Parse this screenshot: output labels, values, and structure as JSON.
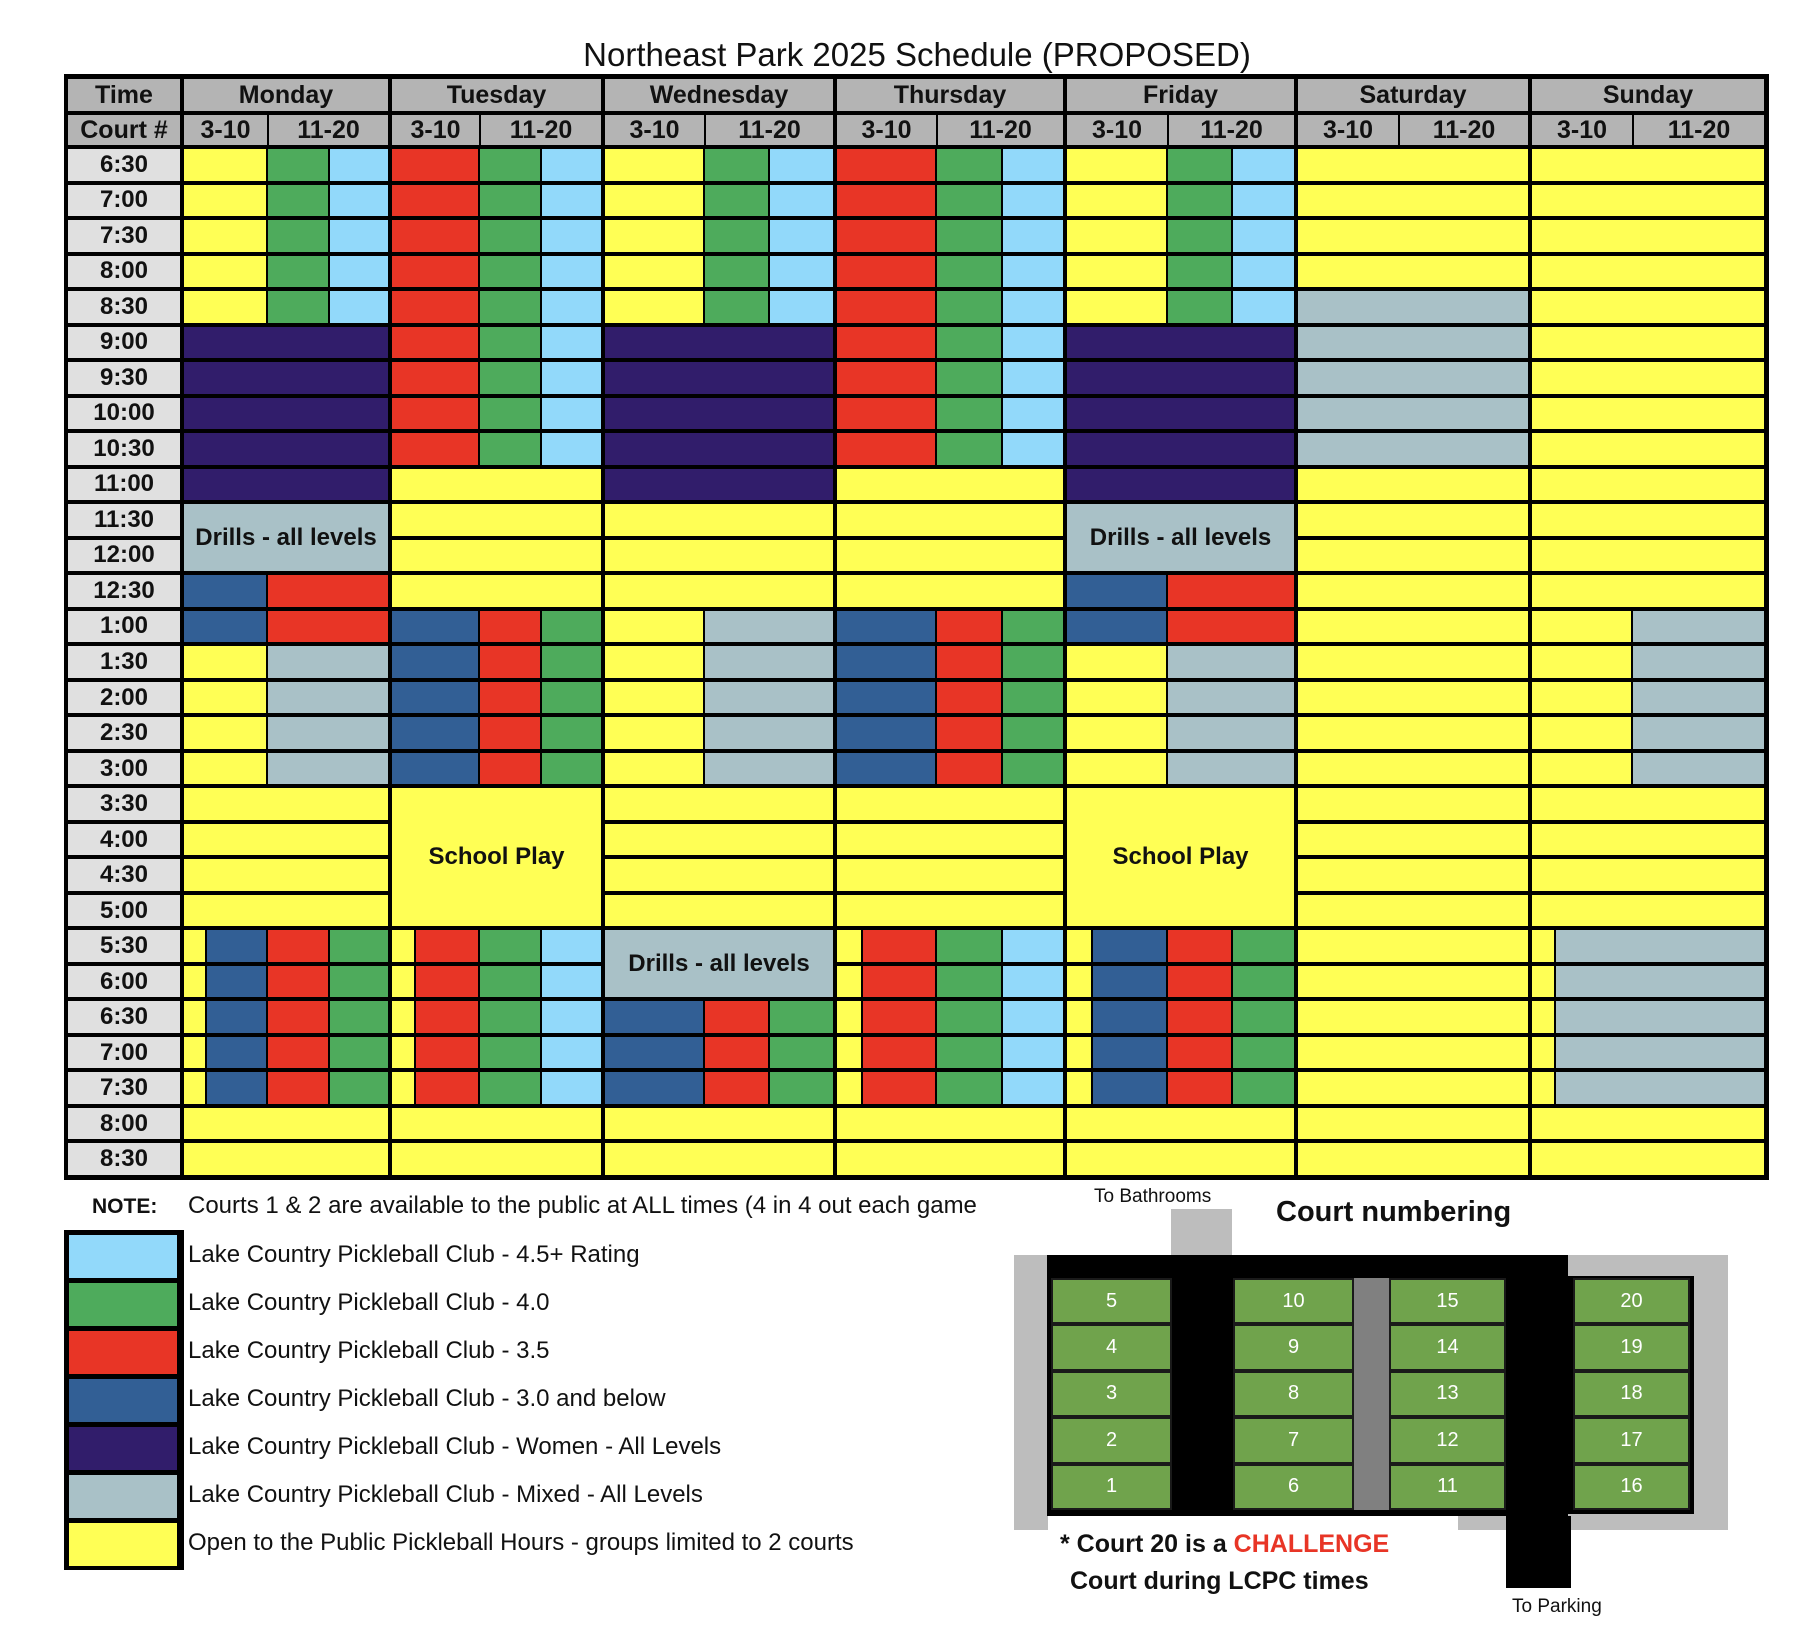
{
  "title": "Northeast Park 2025 Schedule (PROPOSED)",
  "header": {
    "time_label": "Time",
    "court_label": "Court #",
    "sub_labels": [
      "3-10",
      "11-20"
    ],
    "days": [
      "Monday",
      "Tuesday",
      "Wednesday",
      "Thursday",
      "Friday",
      "Saturday",
      "Sunday"
    ]
  },
  "times": [
    "6:30",
    "7:00",
    "7:30",
    "8:00",
    "8:30",
    "9:00",
    "9:30",
    "10:00",
    "10:30",
    "11:00",
    "11:30",
    "12:00",
    "12:30",
    "1:00",
    "1:30",
    "2:00",
    "2:30",
    "3:00",
    "3:30",
    "4:00",
    "4:30",
    "5:00",
    "5:30",
    "6:00",
    "6:30",
    "7:00",
    "7:30",
    "8:00",
    "8:30"
  ],
  "colors": {
    "L": "#92d9fa",
    "G": "#4eab5c",
    "R": "#e83526",
    "B": "#325f95",
    "P": "#311d6b",
    "M": "#a9c1c7",
    "Y": "#ffff55"
  },
  "schedule": [
    {
      "day": "Monday",
      "blocks": [
        {
          "from": 0,
          "rows": 5,
          "lanes": [
            "Y",
            "G",
            "L"
          ]
        },
        {
          "from": 5,
          "rows": 5,
          "lanes": [
            "P"
          ]
        },
        {
          "from": 10,
          "rows": 2,
          "lanes": [
            "M"
          ],
          "merged": true,
          "label": "Drills - all levels"
        },
        {
          "from": 12,
          "rows": 2,
          "lanes": [
            "B",
            "R"
          ]
        },
        {
          "from": 14,
          "rows": 4,
          "lanes": [
            "Y",
            "M"
          ]
        },
        {
          "from": 18,
          "rows": 4,
          "lanes": [
            "Y"
          ]
        },
        {
          "from": 22,
          "rows": 5,
          "lanes": [
            "Y",
            "B",
            "R",
            "G"
          ],
          "evening": true
        },
        {
          "from": 27,
          "rows": 2,
          "lanes": [
            "Y"
          ]
        }
      ]
    },
    {
      "day": "Tuesday",
      "blocks": [
        {
          "from": 0,
          "rows": 9,
          "lanes": [
            "R",
            "G",
            "L"
          ]
        },
        {
          "from": 9,
          "rows": 4,
          "lanes": [
            "Y"
          ]
        },
        {
          "from": 13,
          "rows": 5,
          "lanes": [
            "B",
            "R",
            "G"
          ]
        },
        {
          "from": 18,
          "rows": 4,
          "lanes": [
            "Y"
          ],
          "merged": true,
          "label": "School Play"
        },
        {
          "from": 22,
          "rows": 5,
          "lanes": [
            "Y",
            "R",
            "G",
            "L"
          ],
          "evening": true
        },
        {
          "from": 27,
          "rows": 2,
          "lanes": [
            "Y"
          ]
        }
      ]
    },
    {
      "day": "Wednesday",
      "blocks": [
        {
          "from": 0,
          "rows": 5,
          "lanes": [
            "Y",
            "G",
            "L"
          ]
        },
        {
          "from": 5,
          "rows": 5,
          "lanes": [
            "P"
          ]
        },
        {
          "from": 10,
          "rows": 3,
          "lanes": [
            "Y"
          ]
        },
        {
          "from": 13,
          "rows": 5,
          "lanes": [
            "Y",
            "M"
          ]
        },
        {
          "from": 18,
          "rows": 4,
          "lanes": [
            "Y"
          ]
        },
        {
          "from": 22,
          "rows": 2,
          "lanes": [
            "M"
          ],
          "merged": true,
          "label": "Drills - all levels"
        },
        {
          "from": 24,
          "rows": 3,
          "lanes": [
            "B",
            "R",
            "G"
          ]
        },
        {
          "from": 27,
          "rows": 2,
          "lanes": [
            "Y"
          ]
        }
      ]
    },
    {
      "day": "Thursday",
      "blocks": [
        {
          "from": 0,
          "rows": 9,
          "lanes": [
            "R",
            "G",
            "L"
          ]
        },
        {
          "from": 9,
          "rows": 4,
          "lanes": [
            "Y"
          ]
        },
        {
          "from": 13,
          "rows": 5,
          "lanes": [
            "B",
            "R",
            "G"
          ]
        },
        {
          "from": 18,
          "rows": 4,
          "lanes": [
            "Y"
          ]
        },
        {
          "from": 22,
          "rows": 5,
          "lanes": [
            "Y",
            "R",
            "G",
            "L"
          ],
          "evening": true
        },
        {
          "from": 27,
          "rows": 2,
          "lanes": [
            "Y"
          ]
        }
      ]
    },
    {
      "day": "Friday",
      "blocks": [
        {
          "from": 0,
          "rows": 5,
          "lanes": [
            "Y",
            "G",
            "L"
          ]
        },
        {
          "from": 5,
          "rows": 5,
          "lanes": [
            "P"
          ]
        },
        {
          "from": 10,
          "rows": 2,
          "lanes": [
            "M"
          ],
          "merged": true,
          "label": "Drills - all levels"
        },
        {
          "from": 12,
          "rows": 2,
          "lanes": [
            "B",
            "R"
          ]
        },
        {
          "from": 14,
          "rows": 4,
          "lanes": [
            "Y",
            "M"
          ]
        },
        {
          "from": 18,
          "rows": 4,
          "lanes": [
            "Y"
          ],
          "merged": true,
          "label": "School Play"
        },
        {
          "from": 22,
          "rows": 5,
          "lanes": [
            "Y",
            "B",
            "R",
            "G"
          ],
          "evening": true
        },
        {
          "from": 27,
          "rows": 2,
          "lanes": [
            "Y"
          ]
        }
      ]
    },
    {
      "day": "Saturday",
      "blocks": [
        {
          "from": 0,
          "rows": 4,
          "lanes": [
            "Y"
          ]
        },
        {
          "from": 4,
          "rows": 5,
          "lanes": [
            "M"
          ]
        },
        {
          "from": 9,
          "rows": 20,
          "lanes": [
            "Y"
          ]
        }
      ]
    },
    {
      "day": "Sunday",
      "blocks": [
        {
          "from": 0,
          "rows": 13,
          "lanes": [
            "Y"
          ]
        },
        {
          "from": 13,
          "rows": 5,
          "lanes": [
            "Y",
            "M"
          ]
        },
        {
          "from": 18,
          "rows": 4,
          "lanes": [
            "Y"
          ]
        },
        {
          "from": 22,
          "rows": 5,
          "lanes": [
            "Y",
            "M"
          ],
          "evening": true
        },
        {
          "from": 27,
          "rows": 2,
          "lanes": [
            "Y"
          ]
        }
      ]
    }
  ],
  "note": {
    "label": "NOTE:",
    "text": "Courts 1 & 2 are available to the public at ALL times (4 in 4 out each game"
  },
  "legend": [
    {
      "key": "L",
      "label": "Lake Country Pickleball Club - 4.5+ Rating"
    },
    {
      "key": "G",
      "label": "Lake Country Pickleball Club - 4.0"
    },
    {
      "key": "R",
      "label": "Lake Country Pickleball Club - 3.5"
    },
    {
      "key": "B",
      "label": "Lake Country Pickleball Club - 3.0 and below"
    },
    {
      "key": "P",
      "label": "Lake Country Pickleball Club - Women - All Levels"
    },
    {
      "key": "M",
      "label": "Lake Country Pickleball Club - Mixed - All Levels"
    },
    {
      "key": "Y",
      "label": "Open to the Public Pickleball Hours - groups limited to 2 courts"
    }
  ],
  "court_map": {
    "title": "Court numbering",
    "to_bathrooms": "To Bathrooms",
    "to_parking": "To Parking",
    "columns": [
      [
        5,
        4,
        3,
        2,
        1
      ],
      [
        10,
        9,
        8,
        7,
        6
      ],
      [
        15,
        14,
        13,
        12,
        11
      ],
      [
        20,
        19,
        18,
        17,
        16
      ]
    ],
    "footnote_prefix": "* Court 20 is a ",
    "footnote_highlight": "CHALLENGE",
    "footnote_line2": "Court during LCPC times",
    "highlight_color": "#e83526"
  }
}
